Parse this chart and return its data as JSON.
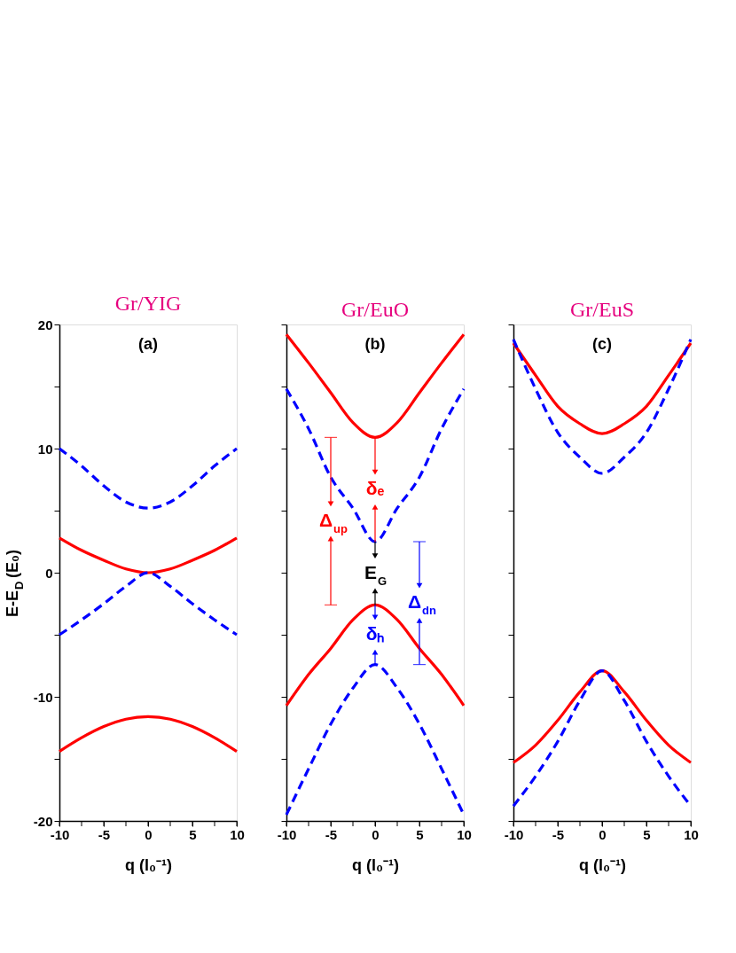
{
  "chart_data": [
    {
      "type": "line",
      "title": "Gr/YIG",
      "xlabel": "q (l₀⁻¹)",
      "ylabel": "E-E$_{D}$ (E₀)",
      "xlim": [
        -10,
        10
      ],
      "ylim": [
        -20,
        20
      ],
      "xticks": [
        -10,
        {
          "value": -7.5,
          "label": null
        },
        -5,
        {
          "value": -2.5,
          "label": null
        },
        0,
        {
          "value": 2.5,
          "label": null
        },
        5,
        {
          "value": 7.5,
          "label": null
        },
        10
      ],
      "yticks": [
        -20,
        {
          "value": -15,
          "label": null
        },
        -10,
        {
          "value": -5,
          "label": null
        },
        0,
        {
          "value": 5,
          "label": null
        },
        10,
        {
          "value": 15,
          "label": null
        },
        20
      ],
      "x": [
        -10,
        -7.5,
        -5,
        -2.5,
        0,
        2.5,
        5,
        7.5,
        10
      ],
      "grid": false,
      "annotations": [
        "(a)"
      ],
      "series": [
        {
          "color": "#0000ff",
          "line_style": "dashed",
          "values": [
            10,
            8.6,
            7.0,
            5.7,
            5.2,
            5.7,
            7.0,
            8.6,
            10
          ]
        },
        {
          "color": "#ff0000",
          "line_style": "solid",
          "values": [
            2.8,
            1.8,
            1.0,
            0.3,
            0,
            0.3,
            1.0,
            1.8,
            2.8
          ]
        },
        {
          "color": "#0000ff",
          "line_style": "dashed",
          "values": [
            -5,
            -3.8,
            -2.5,
            -1.1,
            0,
            -1.1,
            -2.5,
            -3.8,
            -5
          ]
        },
        {
          "color": "#ff0000",
          "line_style": "solid",
          "values": [
            -14.4,
            -13.3,
            -12.4,
            -11.8,
            -11.6,
            -11.8,
            -12.4,
            -13.3,
            -14.4
          ]
        }
      ]
    },
    {
      "type": "line",
      "title": "Gr/EuO",
      "xlabel": "q (l₀⁻¹)",
      "xlim": [
        -10,
        10
      ],
      "ylim": [
        -20,
        20
      ],
      "tick_labels": "x",
      "xticks": [
        -10,
        {
          "value": -7.5,
          "label": null
        },
        -5,
        {
          "value": -2.5,
          "label": null
        },
        0,
        {
          "value": 2.5,
          "label": null
        },
        5,
        {
          "value": 7.5,
          "label": null
        },
        10
      ],
      "yticks": [
        -20,
        {
          "value": -15,
          "label": null
        },
        -10,
        {
          "value": -5,
          "label": null
        },
        0,
        {
          "value": 5,
          "label": null
        },
        10,
        {
          "value": 15,
          "label": null
        },
        20
      ],
      "x": [
        -10,
        -7.5,
        -5,
        -2.5,
        0,
        2.5,
        5,
        7.5,
        10
      ],
      "grid": false,
      "annotations": [
        "(b)",
        "δₑ",
        "E$_{G}$",
        "δₕ",
        "Δ$_{up}$",
        "Δ$_{dn}$"
      ],
      "series": [
        {
          "color": "#ff0000",
          "line_style": "solid",
          "values": [
            19.2,
            16.9,
            14.5,
            12.1,
            10.9,
            12.1,
            14.5,
            16.9,
            19.2
          ]
        },
        {
          "color": "#0000ff",
          "line_style": "dashed",
          "values": [
            14.8,
            11.6,
            7.7,
            5.2,
            2.5,
            5.2,
            7.7,
            11.6,
            14.8
          ]
        },
        {
          "color": "#ff0000",
          "line_style": "solid",
          "values": [
            -10.7,
            -8.2,
            -6.1,
            -3.8,
            -2.6,
            -3.8,
            -6.1,
            -8.2,
            -10.7
          ]
        },
        {
          "color": "#0000ff",
          "line_style": "dashed",
          "values": [
            -19.5,
            -15.8,
            -12.2,
            -9.3,
            -7.4,
            -9.3,
            -12.2,
            -15.8,
            -19.5
          ]
        }
      ]
    },
    {
      "type": "line",
      "title": "Gr/EuS",
      "xlabel": "q (l₀⁻¹)",
      "xlim": [
        -10,
        10
      ],
      "ylim": [
        -20,
        20
      ],
      "tick_labels": "x",
      "xticks": [
        -10,
        {
          "value": -7.5,
          "label": null
        },
        -5,
        {
          "value": -2.5,
          "label": null
        },
        0,
        {
          "value": 2.5,
          "label": null
        },
        5,
        {
          "value": 7.5,
          "label": null
        },
        10
      ],
      "yticks": [
        -20,
        {
          "value": -15,
          "label": null
        },
        -10,
        {
          "value": -5,
          "label": null
        },
        0,
        {
          "value": 5,
          "label": null
        },
        10,
        {
          "value": 15,
          "label": null
        },
        20
      ],
      "x": [
        -10,
        -7.5,
        -5,
        -2.5,
        0,
        2.5,
        5,
        7.5,
        10
      ],
      "grid": false,
      "annotations": [
        "(c)"
      ],
      "series": [
        {
          "color": "#ff0000",
          "line_style": "solid",
          "values": [
            18.5,
            15.9,
            13.4,
            12.0,
            11.2,
            12.0,
            13.4,
            15.9,
            18.5
          ]
        },
        {
          "color": "#0000ff",
          "line_style": "dashed",
          "values": [
            18.8,
            14.8,
            11.3,
            9.3,
            8.0,
            9.3,
            11.3,
            14.8,
            18.8
          ]
        },
        {
          "color": "#ff0000",
          "line_style": "solid",
          "values": [
            -15.3,
            -13.9,
            -11.9,
            -9.6,
            -7.9,
            -9.6,
            -11.9,
            -13.9,
            -15.3
          ]
        },
        {
          "color": "#0000ff",
          "line_style": "dashed",
          "values": [
            -18.8,
            -16.4,
            -13.6,
            -10.3,
            -7.9,
            -10.3,
            -13.6,
            -16.4,
            -18.8
          ]
        }
      ]
    }
  ]
}
